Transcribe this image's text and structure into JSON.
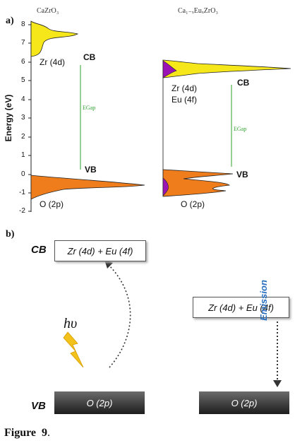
{
  "panel_a": {
    "label": "a)",
    "left_title": "CaZrO₃",
    "right_title": "Ca₁₋ₓEuₓZrO₃",
    "y_axis_label": "Energy (eV)",
    "y_ticks": [
      "8",
      "7",
      "6",
      "5",
      "4",
      "3",
      "2",
      "1",
      "0",
      "-1",
      "-2"
    ],
    "left": {
      "cb_label": "CB",
      "vb_label": "VB",
      "cb_orbital": "Zr (4d)",
      "vb_orbital": "O (2p)",
      "gap_label": "EGap"
    },
    "right": {
      "cb_label": "CB",
      "vb_label": "VB",
      "cb_orbital_1": "Zr (4d)",
      "cb_orbital_2": "Eu (4f)",
      "vb_orbital": "O (2p)",
      "gap_label": "EGap"
    },
    "colors": {
      "cb_fill": "#f5e71a",
      "vb_fill": "#f07d1c",
      "eu_fill": "#9a13b5",
      "gap_line": "#2ca02c"
    }
  },
  "panel_b": {
    "label": "b)",
    "cb_label": "CB",
    "vb_label": "VB",
    "cb_box": "Zr (4d) + Eu (4f)",
    "right_box": "Zr (4d) + Eu (4f)",
    "vb_left": "O (2p)",
    "vb_right": "O (2p)",
    "photon_label": "hυ",
    "emission_label": "Emission",
    "icons": [
      "lightning-icon"
    ],
    "colors": {
      "lightning": "#f2c21b",
      "emission_text": "#2a6fbf",
      "arrow": "#333333"
    }
  },
  "caption": {
    "figure": "Figure  9",
    "dot": "."
  }
}
